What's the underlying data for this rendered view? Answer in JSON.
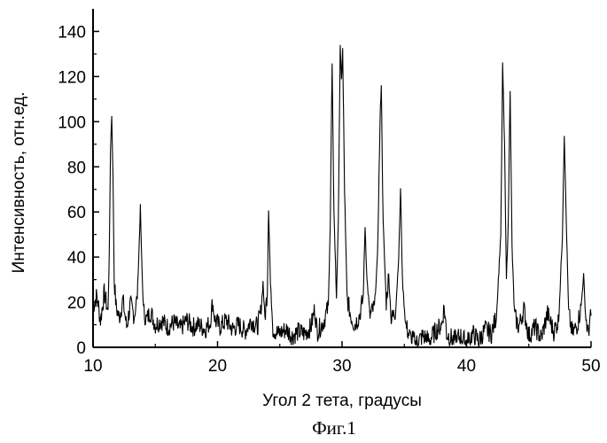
{
  "chart_data": {
    "type": "line",
    "xlabel": "Угол 2 тета, градусы",
    "ylabel": "Интенсивность, отн.ед.",
    "xlim": [
      10,
      50
    ],
    "ylim": [
      0,
      150
    ],
    "x_ticks": [
      10,
      20,
      30,
      40,
      50
    ],
    "y_ticks": [
      0,
      20,
      40,
      60,
      80,
      100,
      120,
      140
    ],
    "grid": false,
    "legend": "none",
    "series": [
      {
        "color": "#000000",
        "points": [
          [
            10.0,
            18
          ],
          [
            10.3,
            23
          ],
          [
            10.6,
            12
          ],
          [
            10.9,
            24
          ],
          [
            11.2,
            16
          ],
          [
            11.3,
            40
          ],
          [
            11.4,
            88
          ],
          [
            11.5,
            103
          ],
          [
            11.6,
            76
          ],
          [
            11.7,
            30
          ],
          [
            11.85,
            18
          ],
          [
            12.1,
            13
          ],
          [
            12.4,
            21
          ],
          [
            12.7,
            9
          ],
          [
            13.0,
            19
          ],
          [
            13.3,
            14
          ],
          [
            13.55,
            22
          ],
          [
            13.7,
            45
          ],
          [
            13.8,
            62
          ],
          [
            13.9,
            40
          ],
          [
            14.05,
            16
          ],
          [
            14.3,
            12
          ],
          [
            14.6,
            16
          ],
          [
            15.0,
            10
          ],
          [
            15.5,
            12
          ],
          [
            16.0,
            9
          ],
          [
            16.5,
            11
          ],
          [
            17.0,
            8
          ],
          [
            17.5,
            12
          ],
          [
            18.0,
            9
          ],
          [
            18.5,
            10
          ],
          [
            19.0,
            8
          ],
          [
            19.4,
            11
          ],
          [
            19.6,
            20
          ],
          [
            19.8,
            12
          ],
          [
            20.2,
            9
          ],
          [
            20.7,
            12
          ],
          [
            21.2,
            8
          ],
          [
            21.7,
            10
          ],
          [
            22.2,
            7
          ],
          [
            22.7,
            12
          ],
          [
            23.2,
            9
          ],
          [
            23.5,
            16
          ],
          [
            23.65,
            29
          ],
          [
            23.8,
            13
          ],
          [
            24.0,
            25
          ],
          [
            24.1,
            62
          ],
          [
            24.25,
            28
          ],
          [
            24.45,
            8
          ],
          [
            24.9,
            6
          ],
          [
            25.5,
            8
          ],
          [
            26.0,
            5
          ],
          [
            26.5,
            7
          ],
          [
            27.0,
            6
          ],
          [
            27.5,
            9
          ],
          [
            27.8,
            17
          ],
          [
            28.0,
            7
          ],
          [
            28.5,
            11
          ],
          [
            28.9,
            18
          ],
          [
            29.05,
            55
          ],
          [
            29.2,
            125
          ],
          [
            29.35,
            60
          ],
          [
            29.55,
            22
          ],
          [
            29.7,
            55
          ],
          [
            29.85,
            133
          ],
          [
            29.95,
            118
          ],
          [
            30.05,
            132
          ],
          [
            30.2,
            70
          ],
          [
            30.4,
            22
          ],
          [
            30.7,
            14
          ],
          [
            31.0,
            10
          ],
          [
            31.4,
            14
          ],
          [
            31.7,
            22
          ],
          [
            31.85,
            54
          ],
          [
            32.0,
            30
          ],
          [
            32.25,
            14
          ],
          [
            32.6,
            18
          ],
          [
            32.85,
            40
          ],
          [
            33.05,
            100
          ],
          [
            33.15,
            117
          ],
          [
            33.3,
            55
          ],
          [
            33.55,
            20
          ],
          [
            33.75,
            32
          ],
          [
            33.95,
            12
          ],
          [
            34.3,
            16
          ],
          [
            34.55,
            40
          ],
          [
            34.7,
            70
          ],
          [
            34.85,
            30
          ],
          [
            35.1,
            10
          ],
          [
            35.5,
            4
          ],
          [
            36.0,
            2
          ],
          [
            36.5,
            5
          ],
          [
            37.0,
            3
          ],
          [
            37.5,
            7
          ],
          [
            38.0,
            10
          ],
          [
            38.2,
            18
          ],
          [
            38.4,
            6
          ],
          [
            39.0,
            3
          ],
          [
            39.5,
            5
          ],
          [
            40.0,
            2
          ],
          [
            40.5,
            6
          ],
          [
            41.0,
            3
          ],
          [
            41.5,
            8
          ],
          [
            42.0,
            6
          ],
          [
            42.4,
            14
          ],
          [
            42.75,
            50
          ],
          [
            42.9,
            125
          ],
          [
            43.05,
            90
          ],
          [
            43.2,
            30
          ],
          [
            43.35,
            55
          ],
          [
            43.5,
            115
          ],
          [
            43.65,
            45
          ],
          [
            43.85,
            14
          ],
          [
            44.2,
            9
          ],
          [
            44.6,
            17
          ],
          [
            45.0,
            5
          ],
          [
            45.5,
            9
          ],
          [
            46.0,
            4
          ],
          [
            46.5,
            15
          ],
          [
            47.0,
            7
          ],
          [
            47.4,
            12
          ],
          [
            47.7,
            50
          ],
          [
            47.85,
            95
          ],
          [
            48.0,
            58
          ],
          [
            48.2,
            15
          ],
          [
            48.5,
            6
          ],
          [
            48.9,
            10
          ],
          [
            49.2,
            18
          ],
          [
            49.4,
            32
          ],
          [
            49.55,
            15
          ],
          [
            49.75,
            6
          ],
          [
            50.0,
            14
          ]
        ]
      }
    ],
    "caption": "Фиг.1"
  }
}
